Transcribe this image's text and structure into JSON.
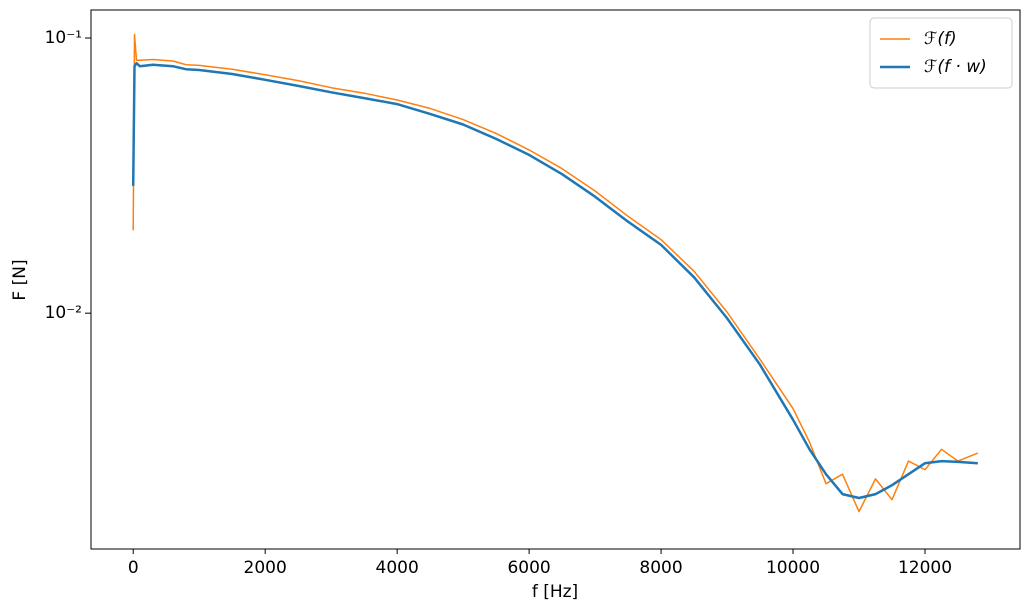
{
  "chart_data": {
    "type": "line",
    "xlabel": "f [Hz]",
    "ylabel": "F [N]",
    "yscale": "log",
    "legend": "upper right",
    "x": [
      0,
      20,
      50,
      100,
      300,
      600,
      800,
      1000,
      1500,
      2000,
      2500,
      3000,
      3500,
      4000,
      4500,
      5000,
      5500,
      6000,
      6500,
      7000,
      7500,
      8000,
      8500,
      9000,
      9500,
      10000,
      10250,
      10500,
      10750,
      11000,
      11250,
      11500,
      11750,
      12000,
      12250,
      12500,
      12800
    ],
    "series": [
      {
        "name": "ℱ(f)",
        "color": "#ff7f0e",
        "width": 1.5,
        "values": [
          0.02,
          0.103,
          0.083,
          0.083,
          0.0835,
          0.0825,
          0.08,
          0.0795,
          0.077,
          0.0735,
          0.07,
          0.066,
          0.063,
          0.0595,
          0.0555,
          0.0505,
          0.045,
          0.0392,
          0.0335,
          0.0278,
          0.0225,
          0.0185,
          0.0142,
          0.0101,
          0.0068,
          0.0045,
          0.0034,
          0.0024,
          0.0026,
          0.0019,
          0.0025,
          0.0021,
          0.0029,
          0.0027,
          0.0032,
          0.0029,
          0.0031
        ]
      },
      {
        "name": "ℱ(f · w)",
        "color": "#1f77b4",
        "width": 2.5,
        "values": [
          0.029,
          0.079,
          0.081,
          0.079,
          0.08,
          0.079,
          0.077,
          0.0765,
          0.074,
          0.0705,
          0.067,
          0.0635,
          0.0605,
          0.0575,
          0.053,
          0.0485,
          0.043,
          0.0376,
          0.032,
          0.0265,
          0.0215,
          0.0177,
          0.0135,
          0.0096,
          0.0065,
          0.0041,
          0.0032,
          0.0026,
          0.0022,
          0.00213,
          0.0022,
          0.00237,
          0.0026,
          0.00285,
          0.0029,
          0.00288,
          0.00285
        ]
      }
    ],
    "xlim": [
      -640,
      13440
    ],
    "xticks": [
      0,
      2000,
      4000,
      6000,
      8000,
      10000,
      12000
    ],
    "ylim": [
      0.00139,
      0.1264
    ],
    "yticks": [
      {
        "value": 0.01,
        "label": "10⁻²"
      },
      {
        "value": 0.1,
        "label": "10⁻¹"
      }
    ]
  }
}
